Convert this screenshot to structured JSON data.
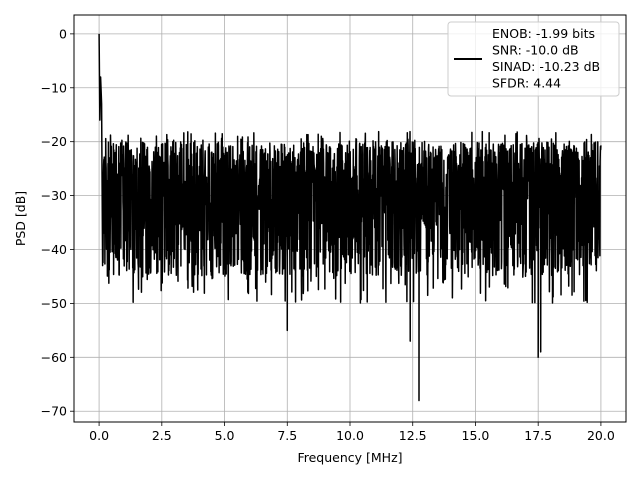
{
  "chart_data": {
    "type": "line",
    "title": "",
    "xlabel": "Frequency [MHz]",
    "ylabel": "PSD [dB]",
    "xlim": [
      -1.0,
      21.0
    ],
    "ylim": [
      -72.0,
      3.5
    ],
    "xticks": [
      0.0,
      2.5,
      5.0,
      7.5,
      10.0,
      12.5,
      15.0,
      17.5,
      20.0
    ],
    "xtick_labels": [
      "0.0",
      "2.5",
      "5.0",
      "7.5",
      "10.0",
      "12.5",
      "15.0",
      "17.5",
      "20.0"
    ],
    "yticks": [
      0,
      -10,
      -20,
      -30,
      -40,
      -50,
      -60,
      -70
    ],
    "ytick_labels": [
      "0",
      "−10",
      "−20",
      "−30",
      "−40",
      "−50",
      "−60",
      "−70"
    ],
    "grid": true,
    "legend_position": "top-right",
    "line_color": "#000000",
    "series": [
      {
        "name": "ENOB: -1.99 bits\nSNR: -10.0 dB\nSINAD: -10.23 dB\nSFDR: 4.44",
        "legend_lines": [
          "ENOB: -1.99 bits",
          "SNR: -10.0 dB",
          "SINAD: -10.23 dB",
          "SFDR: 4.44"
        ],
        "x_range": [
          0.0,
          20.0
        ],
        "noise_floor_db": -30,
        "envelope_upper_db": -20,
        "envelope_lower_db": -45,
        "peaks": [
          {
            "x": 0.0,
            "y": 0
          },
          {
            "x": 0.03,
            "y": -16
          },
          {
            "x": 0.06,
            "y": -8
          },
          {
            "x": 0.1,
            "y": -13
          },
          {
            "x": 0.14,
            "y": -43
          }
        ],
        "dips": [
          {
            "x": 7.5,
            "y": -55
          },
          {
            "x": 12.4,
            "y": -57
          },
          {
            "x": 12.75,
            "y": -68
          },
          {
            "x": 17.5,
            "y": -60
          },
          {
            "x": 17.6,
            "y": -59
          }
        ]
      }
    ]
  }
}
